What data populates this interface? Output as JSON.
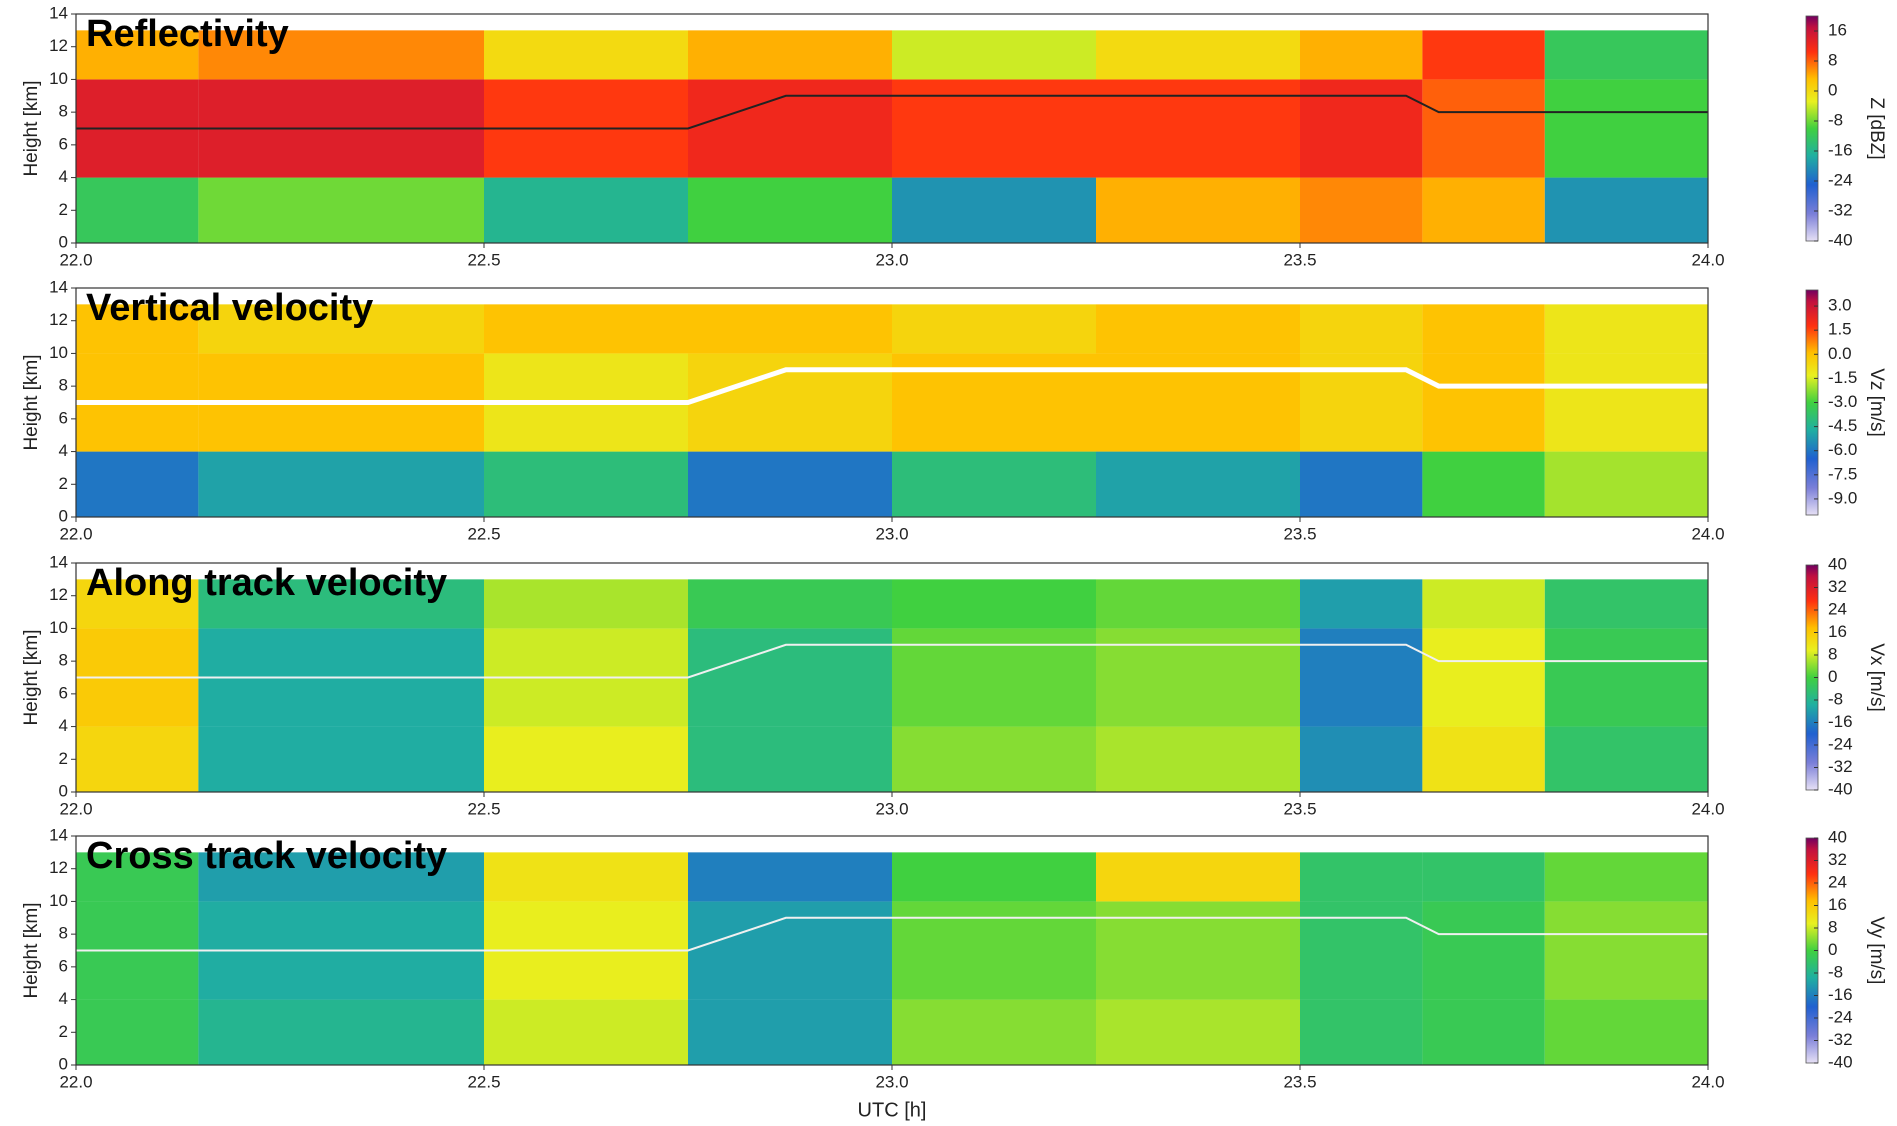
{
  "chart_data": [
    {
      "type": "heatmap",
      "title": "Reflectivity",
      "ylabel": "Height [km]",
      "xlim": [
        22,
        24
      ],
      "xticks": [
        {
          "value": 22,
          "label": "22.0"
        },
        {
          "value": 22.5,
          "label": "22.5"
        },
        {
          "value": 23,
          "label": "23.0"
        },
        {
          "value": 23.5,
          "label": "23.5"
        },
        {
          "value": 24,
          "label": "24.0"
        }
      ],
      "ylim": [
        0,
        14
      ],
      "yticks": [
        0,
        2,
        4,
        6,
        8,
        10,
        12,
        14
      ],
      "colorbar": {
        "label": "Z [dBZ]",
        "lim": [
          -40,
          20
        ],
        "ticks": [
          -40,
          -32,
          -24,
          -16,
          -8,
          0,
          8,
          16
        ]
      },
      "field": {
        "x_edges": [
          22.0,
          22.15,
          22.5,
          22.75,
          23.0,
          23.25,
          23.5,
          23.65,
          23.8,
          24.0
        ],
        "y_edges": [
          0,
          4,
          10,
          13
        ],
        "values": [
          [
            -12,
            -8,
            -16,
            -10,
            -20,
            4,
            6,
            4,
            -20
          ],
          [
            14,
            14,
            10,
            12,
            10,
            10,
            12,
            8,
            -10
          ],
          [
            4,
            6,
            0,
            4,
            -4,
            0,
            4,
            10,
            -12
          ]
        ]
      },
      "line": {
        "x": [
          22.0,
          22.75,
          22.87,
          23.63,
          23.67,
          24.0
        ],
        "y": [
          7,
          7,
          9,
          9,
          8,
          8
        ],
        "color": "#222222"
      }
    },
    {
      "type": "heatmap",
      "title": "Vertical velocity",
      "ylabel": "Height [km]",
      "xlim": [
        22,
        24
      ],
      "xticks": [
        {
          "value": 22,
          "label": "22.0"
        },
        {
          "value": 22.5,
          "label": "22.5"
        },
        {
          "value": 23,
          "label": "23.0"
        },
        {
          "value": 23.5,
          "label": "23.5"
        },
        {
          "value": 24,
          "label": "24.0"
        }
      ],
      "ylim": [
        0,
        14
      ],
      "yticks": [
        0,
        2,
        4,
        6,
        8,
        10,
        12,
        14
      ],
      "colorbar": {
        "label": "Vz [m/s]",
        "lim": [
          -10,
          4
        ],
        "ticks": [
          {
            "value": -9,
            "label": "-9.0"
          },
          {
            "value": -7.5,
            "label": "-7.5"
          },
          {
            "value": -6,
            "label": "-6.0"
          },
          {
            "value": -4.5,
            "label": "-4.5"
          },
          {
            "value": -3,
            "label": "-3.0"
          },
          {
            "value": -1.5,
            "label": "-1.5"
          },
          {
            "value": 0,
            "label": "0.0"
          },
          {
            "value": 1.5,
            "label": "1.5"
          },
          {
            "value": 3,
            "label": "3.0"
          }
        ]
      },
      "field": {
        "x_edges": [
          22.0,
          22.15,
          22.5,
          22.75,
          23.0,
          23.25,
          23.5,
          23.65,
          23.8,
          24.0
        ],
        "y_edges": [
          0,
          4,
          10,
          13
        ],
        "values": [
          [
            -6,
            -5,
            -4,
            -6,
            -4,
            -5,
            -6,
            -3,
            -2
          ],
          [
            0,
            0,
            -1,
            -0.5,
            0,
            0,
            -0.5,
            0,
            -1
          ],
          [
            0,
            -0.5,
            0,
            0,
            -0.5,
            0,
            -0.5,
            0,
            -1
          ]
        ]
      },
      "line": {
        "x": [
          22.0,
          22.75,
          22.87,
          23.63,
          23.67,
          24.0
        ],
        "y": [
          7,
          7,
          9,
          9,
          8,
          8
        ],
        "color": "#ffffff"
      }
    },
    {
      "type": "heatmap",
      "title": "Along track velocity",
      "ylabel": "Height [km]",
      "xlim": [
        22,
        24
      ],
      "xticks": [
        {
          "value": 22,
          "label": "22.0"
        },
        {
          "value": 22.5,
          "label": "22.5"
        },
        {
          "value": 23,
          "label": "23.0"
        },
        {
          "value": 23.5,
          "label": "23.5"
        },
        {
          "value": 24,
          "label": "24.0"
        }
      ],
      "ylim": [
        0,
        14
      ],
      "yticks": [
        0,
        2,
        4,
        6,
        8,
        10,
        12,
        14
      ],
      "colorbar": {
        "label": "Vx [m/s]",
        "lim": [
          -40,
          40
        ],
        "ticks": [
          -40,
          -32,
          -24,
          -16,
          -8,
          0,
          8,
          16,
          24,
          32,
          40
        ]
      },
      "field": {
        "x_edges": [
          22.0,
          22.15,
          22.5,
          22.75,
          23.0,
          23.25,
          23.5,
          23.65,
          23.8,
          24.0
        ],
        "y_edges": [
          0,
          4,
          10,
          13
        ],
        "values": [
          [
            14,
            -10,
            10,
            -6,
            4,
            6,
            -14,
            12,
            -4
          ],
          [
            16,
            -10,
            8,
            -6,
            2,
            4,
            -16,
            10,
            -2
          ],
          [
            14,
            -6,
            6,
            -2,
            0,
            2,
            -12,
            8,
            -4
          ]
        ]
      },
      "line": {
        "x": [
          22.0,
          22.75,
          22.87,
          23.63,
          23.67,
          24.0
        ],
        "y": [
          7,
          7,
          9,
          9,
          8,
          8
        ],
        "color": "#f0f0f0"
      }
    },
    {
      "type": "heatmap",
      "title": "Cross track velocity",
      "ylabel": "Height [km]",
      "xlabel": "UTC [h]",
      "xlim": [
        22,
        24
      ],
      "xticks": [
        {
          "value": 22,
          "label": "22.0"
        },
        {
          "value": 22.5,
          "label": "22.5"
        },
        {
          "value": 23,
          "label": "23.0"
        },
        {
          "value": 23.5,
          "label": "23.5"
        },
        {
          "value": 24,
          "label": "24.0"
        }
      ],
      "ylim": [
        0,
        14
      ],
      "yticks": [
        0,
        2,
        4,
        6,
        8,
        10,
        12,
        14
      ],
      "colorbar": {
        "label": "Vy [m/s]",
        "lim": [
          -40,
          40
        ],
        "ticks": [
          -40,
          -32,
          -24,
          -16,
          -8,
          0,
          8,
          16,
          24,
          32,
          40
        ]
      },
      "field": {
        "x_edges": [
          22.0,
          22.15,
          22.5,
          22.75,
          23.0,
          23.25,
          23.5,
          23.65,
          23.8,
          24.0
        ],
        "y_edges": [
          0,
          4,
          10,
          13
        ],
        "values": [
          [
            -2,
            -8,
            8,
            -12,
            4,
            6,
            -4,
            -2,
            2
          ],
          [
            -2,
            -10,
            10,
            -12,
            2,
            4,
            -4,
            -2,
            4
          ],
          [
            -2,
            -12,
            12,
            -16,
            0,
            14,
            -4,
            -4,
            2
          ]
        ]
      },
      "line": {
        "x": [
          22.0,
          22.75,
          22.87,
          23.63,
          23.67,
          24.0
        ],
        "y": [
          7,
          7,
          9,
          9,
          8,
          8
        ],
        "color": "#f0f0f0"
      }
    }
  ]
}
